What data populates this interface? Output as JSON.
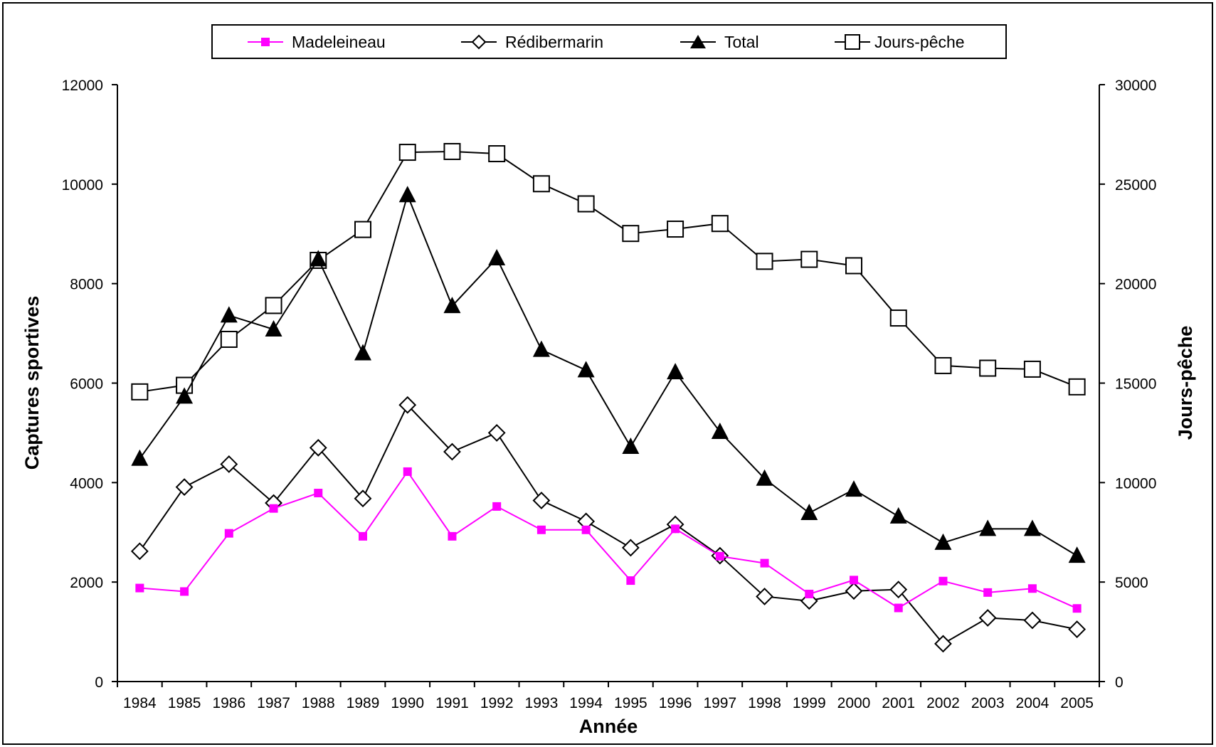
{
  "chart_data": {
    "type": "line",
    "xlabel": "Année",
    "ylabel_left": "Captures sportives",
    "ylabel_right": "Jours-pêche",
    "categories": [
      "1984",
      "1985",
      "1986",
      "1987",
      "1988",
      "1989",
      "1990",
      "1991",
      "1992",
      "1993",
      "1994",
      "1995",
      "1996",
      "1997",
      "1998",
      "1999",
      "2000",
      "2001",
      "2002",
      "2003",
      "2004",
      "2005"
    ],
    "ylim_left": [
      0,
      12000
    ],
    "yticks_left": [
      "0",
      "2000",
      "4000",
      "6000",
      "8000",
      "10000",
      "12000"
    ],
    "ylim_right": [
      0,
      30000
    ],
    "yticks_right": [
      "0",
      "5000",
      "10000",
      "15000",
      "20000",
      "25000",
      "30000"
    ],
    "grid": false,
    "legend_position": "top",
    "series": [
      {
        "name": "Madeleineau",
        "axis": "left",
        "color": "#ff00ff",
        "marker": "square-filled",
        "values": [
          1880,
          1810,
          2980,
          3480,
          3790,
          2920,
          4220,
          2920,
          3520,
          3050,
          3050,
          2030,
          3070,
          2520,
          2380,
          1760,
          2040,
          1480,
          2020,
          1790,
          1870,
          1470
        ]
      },
      {
        "name": "Rédibermarin",
        "axis": "left",
        "color": "#000000",
        "marker": "diamond-open",
        "values": [
          2620,
          3910,
          4370,
          3590,
          4700,
          3680,
          5560,
          4620,
          5000,
          3640,
          3220,
          2690,
          3160,
          2530,
          1710,
          1620,
          1820,
          1850,
          760,
          1280,
          1230,
          1050
        ]
      },
      {
        "name": "Total",
        "axis": "left",
        "color": "#000000",
        "marker": "triangle-filled",
        "values": [
          4480,
          5730,
          7360,
          7080,
          8490,
          6600,
          9780,
          7550,
          8510,
          6670,
          6260,
          4720,
          6220,
          5020,
          4080,
          3390,
          3860,
          3320,
          2790,
          3070,
          3070,
          2530
        ]
      },
      {
        "name": "Jours-pêche",
        "axis": "right",
        "color": "#000000",
        "marker": "square-open",
        "values": [
          14560,
          14890,
          17200,
          18900,
          21170,
          22720,
          26600,
          26640,
          26530,
          25020,
          24010,
          22520,
          22740,
          23020,
          21120,
          21220,
          20900,
          18270,
          15880,
          15750,
          15700,
          14810
        ]
      }
    ]
  }
}
